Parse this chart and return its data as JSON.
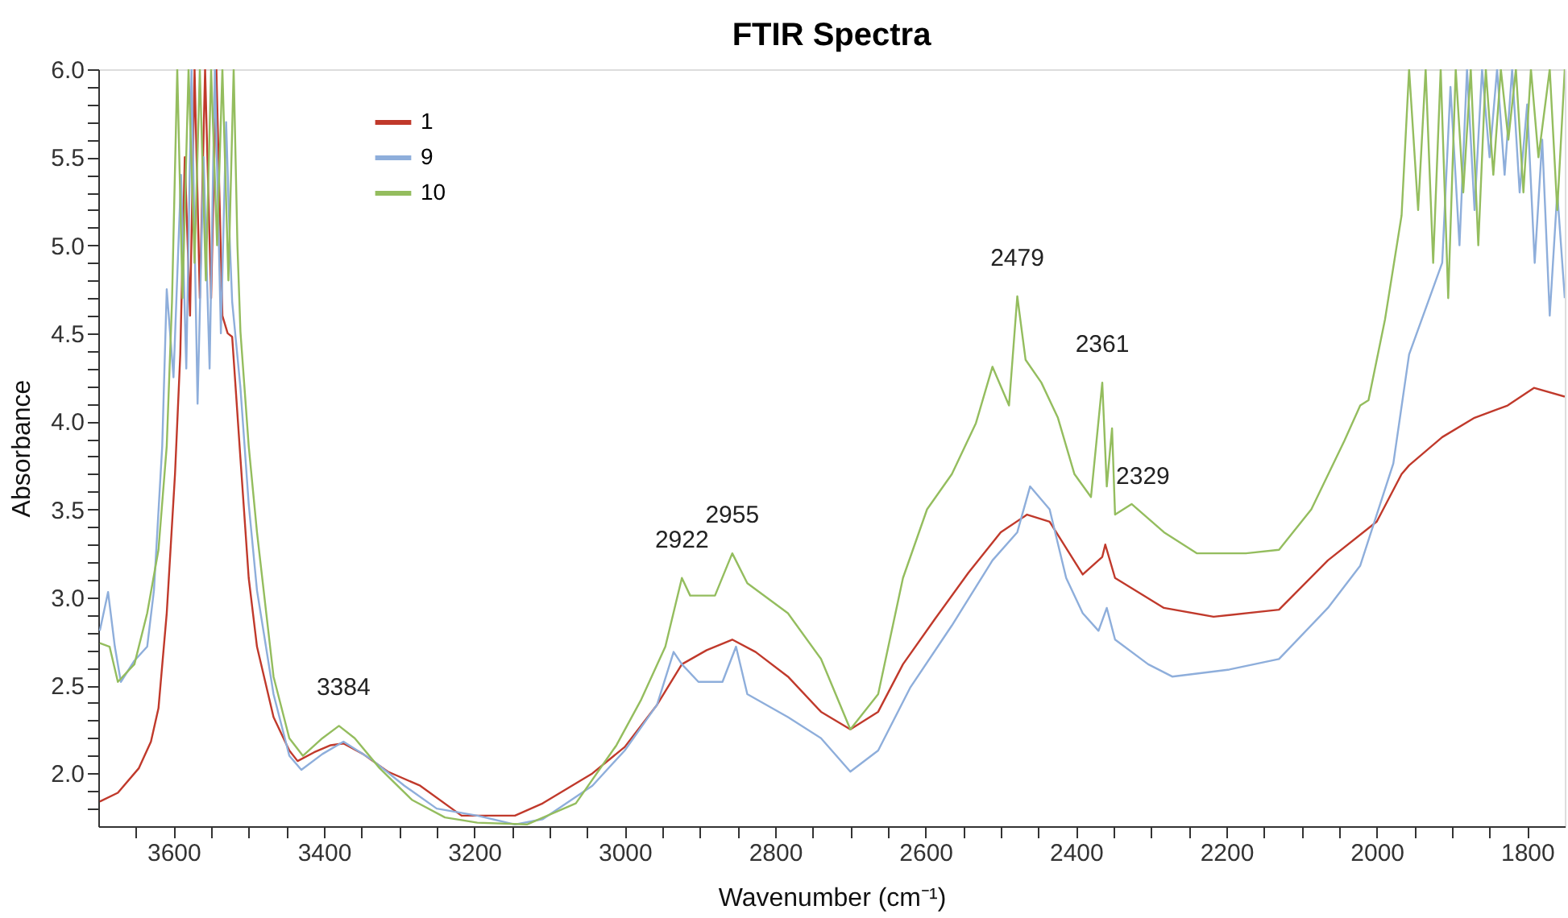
{
  "chart_data": {
    "type": "line",
    "title": "FTIR Spectra",
    "xlabel": "Wavenumber (cm⁻¹)",
    "ylabel": "Absorbance",
    "xlim": [
      3700,
      1750
    ],
    "ylim": [
      1.7,
      6.0
    ],
    "xticks": [
      3600,
      3400,
      3200,
      3000,
      2800,
      2600,
      2400,
      2200,
      2000,
      1800,
      {
        "value": 3650,
        "label": null
      },
      {
        "value": 3550,
        "label": null
      },
      {
        "value": 3500,
        "label": null
      },
      {
        "value": 3450,
        "label": null
      },
      {
        "value": 3350,
        "label": null
      },
      {
        "value": 3300,
        "label": null
      },
      {
        "value": 3250,
        "label": null
      },
      {
        "value": 3150,
        "label": null
      },
      {
        "value": 3100,
        "label": null
      },
      {
        "value": 3050,
        "label": null
      },
      {
        "value": 2950,
        "label": null
      },
      {
        "value": 2900,
        "label": null
      },
      {
        "value": 2850,
        "label": null
      },
      {
        "value": 2750,
        "label": null
      },
      {
        "value": 2700,
        "label": null
      },
      {
        "value": 2650,
        "label": null
      },
      {
        "value": 2550,
        "label": null
      },
      {
        "value": 2500,
        "label": null
      },
      {
        "value": 2450,
        "label": null
      },
      {
        "value": 2350,
        "label": null
      },
      {
        "value": 2300,
        "label": null
      },
      {
        "value": 2250,
        "label": null
      },
      {
        "value": 2150,
        "label": null
      },
      {
        "value": 2100,
        "label": null
      },
      {
        "value": 2050,
        "label": null
      },
      {
        "value": 1950,
        "label": null
      },
      {
        "value": 1900,
        "label": null
      },
      {
        "value": 1850,
        "label": null
      }
    ],
    "yticks": [
      {
        "value": 2.0,
        "label": "2.0"
      },
      2.5,
      {
        "value": 3.0,
        "label": "3.0"
      },
      3.5,
      {
        "value": 4.0,
        "label": "4.0"
      },
      4.5,
      {
        "value": 5.0,
        "label": "5.0"
      },
      5.5,
      {
        "value": 6.0,
        "label": "6.0"
      },
      {
        "value": 1.8,
        "label": null
      },
      {
        "value": 1.9,
        "label": null
      },
      {
        "value": 2.1,
        "label": null
      },
      {
        "value": 2.2,
        "label": null
      },
      {
        "value": 2.3,
        "label": null
      },
      {
        "value": 2.4,
        "label": null
      },
      {
        "value": 2.6,
        "label": null
      },
      {
        "value": 2.7,
        "label": null
      },
      {
        "value": 2.8,
        "label": null
      },
      {
        "value": 2.9,
        "label": null
      },
      {
        "value": 3.1,
        "label": null
      },
      {
        "value": 3.2,
        "label": null
      },
      {
        "value": 3.3,
        "label": null
      },
      {
        "value": 3.4,
        "label": null
      },
      {
        "value": 3.6,
        "label": null
      },
      {
        "value": 3.7,
        "label": null
      },
      {
        "value": 3.8,
        "label": null
      },
      {
        "value": 3.9,
        "label": null
      },
      {
        "value": 4.1,
        "label": null
      },
      {
        "value": 4.2,
        "label": null
      },
      {
        "value": 4.3,
        "label": null
      },
      {
        "value": 4.4,
        "label": null
      },
      {
        "value": 4.6,
        "label": null
      },
      {
        "value": 4.7,
        "label": null
      },
      {
        "value": 4.8,
        "label": null
      },
      {
        "value": 4.9,
        "label": null
      },
      {
        "value": 5.1,
        "label": null
      },
      {
        "value": 5.2,
        "label": null
      },
      {
        "value": 5.3,
        "label": null
      },
      {
        "value": 5.4,
        "label": null
      },
      {
        "value": 5.6,
        "label": null
      },
      {
        "value": 5.7,
        "label": null
      },
      {
        "value": 5.8,
        "label": null
      },
      {
        "value": 5.9,
        "label": null
      }
    ],
    "grid": false,
    "legend": "top left",
    "marker": "none",
    "line_style": "solid",
    "series": [
      {
        "name": "1",
        "color": "#c0392b",
        "x": [
          3698,
          3674,
          3646,
          3630,
          3620,
          3609,
          3598,
          3591,
          3585,
          3578,
          3572,
          3565,
          3558,
          3550,
          3543,
          3535,
          3528,
          3522,
          3511,
          3500,
          3489,
          3467,
          3446,
          3435,
          3413,
          3391,
          3374,
          3348,
          3315,
          3272,
          3217,
          3146,
          3109,
          3043,
          3000,
          2957,
          2924,
          2891,
          2857,
          2826,
          2783,
          2739,
          2700,
          2663,
          2630,
          2587,
          2543,
          2500,
          2465,
          2435,
          2391,
          2365,
          2361,
          2348,
          2283,
          2217,
          2130,
          2065,
          2000,
          1967,
          1957,
          1913,
          1870,
          1826,
          1791,
          1750
        ],
        "values": [
          1.84,
          1.89,
          2.03,
          2.18,
          2.37,
          2.91,
          3.7,
          4.38,
          5.5,
          4.6,
          6.0,
          4.7,
          6.0,
          4.7,
          6.0,
          4.6,
          4.5,
          4.48,
          3.79,
          3.11,
          2.72,
          2.32,
          2.13,
          2.07,
          2.12,
          2.16,
          2.17,
          2.11,
          2.01,
          1.93,
          1.76,
          1.76,
          1.83,
          2.0,
          2.15,
          2.39,
          2.62,
          2.7,
          2.76,
          2.69,
          2.55,
          2.35,
          2.25,
          2.35,
          2.62,
          2.88,
          3.14,
          3.37,
          3.47,
          3.43,
          3.13,
          3.23,
          3.3,
          3.11,
          2.94,
          2.89,
          2.93,
          3.21,
          3.43,
          3.7,
          3.75,
          3.91,
          4.02,
          4.09,
          4.19,
          4.14
        ]
      },
      {
        "name": "9",
        "color": "#8eaedb",
        "x": [
          3698,
          3687,
          3678,
          3670,
          3652,
          3635,
          3626,
          3615,
          3609,
          3600,
          3590,
          3583,
          3576,
          3568,
          3560,
          3552,
          3545,
          3537,
          3530,
          3525,
          3522,
          3511,
          3500,
          3489,
          3467,
          3446,
          3430,
          3402,
          3374,
          3337,
          3293,
          3250,
          3196,
          3146,
          3109,
          3043,
          3000,
          2957,
          2935,
          2924,
          2902,
          2870,
          2852,
          2837,
          2783,
          2739,
          2700,
          2663,
          2620,
          2565,
          2511,
          2478,
          2461,
          2435,
          2413,
          2391,
          2370,
          2359,
          2348,
          2304,
          2272,
          2196,
          2130,
          2065,
          2022,
          1978,
          1957,
          1913,
          1902,
          1890,
          1880,
          1870,
          1860,
          1850,
          1840,
          1830,
          1820,
          1810,
          1800,
          1790,
          1780,
          1770,
          1760,
          1750
        ],
        "values": [
          2.81,
          3.03,
          2.72,
          2.52,
          2.64,
          2.72,
          3.04,
          3.86,
          4.75,
          4.25,
          5.4,
          4.3,
          6.0,
          4.1,
          5.5,
          4.3,
          6.0,
          4.5,
          5.7,
          5.0,
          4.68,
          4.19,
          3.53,
          3.04,
          2.45,
          2.1,
          2.02,
          2.11,
          2.18,
          2.08,
          1.93,
          1.8,
          1.76,
          1.71,
          1.74,
          1.93,
          2.13,
          2.39,
          2.69,
          2.62,
          2.52,
          2.52,
          2.72,
          2.45,
          2.32,
          2.2,
          2.01,
          2.13,
          2.49,
          2.84,
          3.21,
          3.37,
          3.63,
          3.5,
          3.11,
          2.91,
          2.81,
          2.94,
          2.76,
          2.62,
          2.55,
          2.59,
          2.65,
          2.94,
          3.18,
          3.76,
          4.38,
          4.9,
          5.9,
          5.0,
          6.0,
          5.2,
          6.0,
          5.5,
          6.0,
          5.4,
          6.0,
          5.3,
          5.8,
          4.9,
          5.6,
          4.6,
          5.3,
          4.7
        ]
      },
      {
        "name": "10",
        "color": "#94bd5e",
        "x": [
          3698,
          3685,
          3674,
          3652,
          3635,
          3620,
          3609,
          3602,
          3595,
          3588,
          3580,
          3572,
          3565,
          3557,
          3550,
          3542,
          3535,
          3527,
          3520,
          3515,
          3511,
          3500,
          3489,
          3467,
          3446,
          3428,
          3402,
          3380,
          3359,
          3326,
          3283,
          3239,
          3196,
          3130,
          3065,
          3011,
          2978,
          2946,
          2924,
          2913,
          2880,
          2857,
          2837,
          2783,
          2739,
          2700,
          2663,
          2630,
          2598,
          2565,
          2533,
          2511,
          2489,
          2478,
          2467,
          2446,
          2424,
          2402,
          2380,
          2365,
          2359,
          2352,
          2348,
          2326,
          2283,
          2239,
          2174,
          2130,
          2087,
          2043,
          2022,
          2011,
          1989,
          1967,
          1957,
          1945,
          1935,
          1925,
          1915,
          1905,
          1895,
          1885,
          1875,
          1865,
          1855,
          1845,
          1835,
          1825,
          1815,
          1805,
          1795,
          1785,
          1770,
          1760,
          1750
        ],
        "values": [
          2.74,
          2.72,
          2.52,
          2.62,
          2.91,
          3.27,
          3.86,
          4.68,
          6.0,
          4.7,
          6.0,
          4.9,
          6.0,
          4.8,
          6.0,
          5.0,
          6.0,
          4.8,
          6.0,
          5.0,
          4.51,
          3.86,
          3.37,
          2.55,
          2.2,
          2.1,
          2.2,
          2.27,
          2.2,
          2.03,
          1.85,
          1.75,
          1.72,
          1.71,
          1.83,
          2.16,
          2.42,
          2.72,
          3.11,
          3.01,
          3.01,
          3.25,
          3.08,
          2.91,
          2.65,
          2.25,
          2.45,
          3.11,
          3.5,
          3.7,
          3.99,
          4.31,
          4.09,
          4.71,
          4.35,
          4.22,
          4.02,
          3.7,
          3.57,
          4.22,
          3.63,
          3.96,
          3.47,
          3.53,
          3.37,
          3.25,
          3.25,
          3.27,
          3.5,
          3.89,
          4.09,
          4.12,
          4.58,
          5.17,
          6.0,
          5.2,
          6.0,
          4.9,
          6.0,
          4.7,
          6.0,
          5.3,
          6.0,
          5.0,
          6.0,
          5.4,
          6.0,
          5.6,
          6.0,
          5.3,
          6.0,
          5.5,
          6.0,
          5.2,
          6.0
        ]
      }
    ],
    "annotations": [
      {
        "text": "3384",
        "x": 3374,
        "y": 2.27
      },
      {
        "text": "2922",
        "x": 2924,
        "y": 3.11
      },
      {
        "text": "2955",
        "x": 2857,
        "y": 3.25
      },
      {
        "text": "2479",
        "x": 2478,
        "y": 4.71
      },
      {
        "text": "2361",
        "x": 2365,
        "y": 4.22
      },
      {
        "text": "2329",
        "x": 2311,
        "y": 3.47
      }
    ]
  }
}
